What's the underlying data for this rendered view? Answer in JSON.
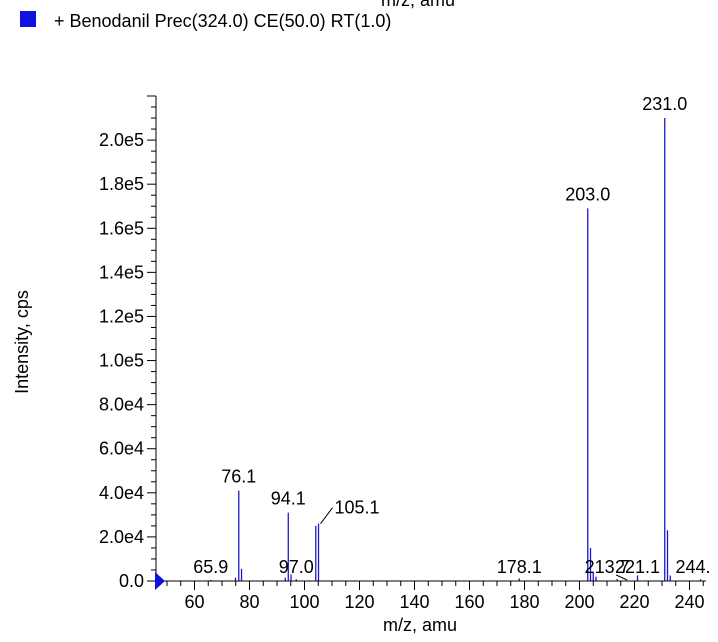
{
  "chart_data": {
    "type": "bar",
    "clipped_top_text": "m/z, amu",
    "legend": {
      "label": "+ Benodanil  Prec(324.0) CE(50.0) RT(1.0)",
      "color": "#1010e0",
      "placement": "top-left"
    },
    "xlabel": "m/z, amu",
    "ylabel": "Intensity, cps",
    "xlim": [
      46,
      246
    ],
    "ylim": [
      0,
      220000
    ],
    "x_ticks": [
      60,
      80,
      100,
      120,
      140,
      160,
      180,
      200,
      220,
      240
    ],
    "y_ticks": [
      {
        "value": 0,
        "label": "0.0"
      },
      {
        "value": 20000,
        "label": "2.0e4"
      },
      {
        "value": 40000,
        "label": "4.0e4"
      },
      {
        "value": 60000,
        "label": "6.0e4"
      },
      {
        "value": 80000,
        "label": "8.0e4"
      },
      {
        "value": 100000,
        "label": "1.0e5"
      },
      {
        "value": 120000,
        "label": "1.2e5"
      },
      {
        "value": 140000,
        "label": "1.4e5"
      },
      {
        "value": 160000,
        "label": "1.6e5"
      },
      {
        "value": 180000,
        "label": "1.8e5"
      },
      {
        "value": 200000,
        "label": "2.0e5"
      }
    ],
    "grid": false,
    "bar_color": "#1a1acc",
    "peaks": [
      {
        "x": 65.9,
        "y": 500
      },
      {
        "x": 74.9,
        "y": 1500
      },
      {
        "x": 76.1,
        "y": 41000
      },
      {
        "x": 77.1,
        "y": 5500
      },
      {
        "x": 93.0,
        "y": 1500
      },
      {
        "x": 94.1,
        "y": 31000
      },
      {
        "x": 95.1,
        "y": 3000
      },
      {
        "x": 97.0,
        "y": 800
      },
      {
        "x": 104.1,
        "y": 25000
      },
      {
        "x": 105.1,
        "y": 26000
      },
      {
        "x": 178.1,
        "y": 1200
      },
      {
        "x": 203.0,
        "y": 169000
      },
      {
        "x": 204.0,
        "y": 15000
      },
      {
        "x": 205.0,
        "y": 4000
      },
      {
        "x": 206.0,
        "y": 2000
      },
      {
        "x": 213.7,
        "y": 900
      },
      {
        "x": 221.1,
        "y": 2500
      },
      {
        "x": 231.0,
        "y": 210000
      },
      {
        "x": 232.0,
        "y": 23000
      },
      {
        "x": 233.0,
        "y": 2500
      },
      {
        "x": 244.0,
        "y": 800
      }
    ],
    "peak_labels": [
      {
        "x": 65.9,
        "y": 500,
        "text": "65.9"
      },
      {
        "x": 76.1,
        "y": 41000,
        "text": "76.1"
      },
      {
        "x": 94.1,
        "y": 31000,
        "text": "94.1"
      },
      {
        "x": 97.0,
        "y": 800,
        "text": "97.0"
      },
      {
        "x": 105.1,
        "y": 26000,
        "text": "105.1"
      },
      {
        "x": 178.1,
        "y": 1200,
        "text": "178.1"
      },
      {
        "x": 213.7,
        "y": 900,
        "text": "213.7"
      },
      {
        "x": 221.1,
        "y": 2500,
        "text": "221.1"
      },
      {
        "x": 231.0,
        "y": 210000,
        "text": "231.0"
      },
      {
        "x": 203.0,
        "y": 169000,
        "text": "203.0"
      },
      {
        "x": 244.0,
        "y": 800,
        "text": "244."
      }
    ]
  }
}
